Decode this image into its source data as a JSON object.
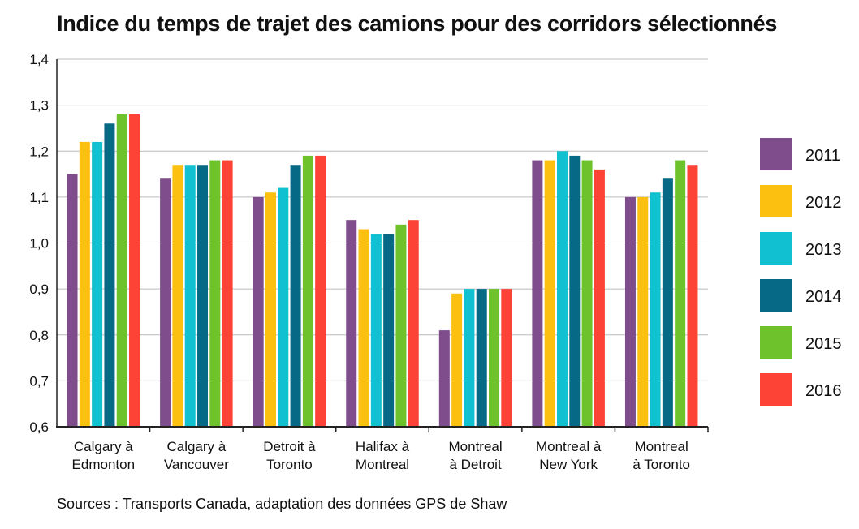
{
  "chart_data": {
    "type": "bar",
    "title": "Indice du temps de trajet des camions pour des corridors sélectionnés",
    "source": "Sources : Transports Canada, adaptation des données GPS de Shaw",
    "categories": [
      [
        "Calgary à",
        "Edmonton"
      ],
      [
        "Calgary à",
        "Vancouver"
      ],
      [
        "Detroit à",
        "Toronto"
      ],
      [
        "Halifax à",
        "Montreal"
      ],
      [
        "Montreal",
        "à Detroit"
      ],
      [
        "Montreal à",
        "New York"
      ],
      [
        "Montreal",
        "à Toronto"
      ]
    ],
    "ylim": [
      0.6,
      1.4
    ],
    "yticks": [
      "0,6",
      "0,7",
      "0,8",
      "0,9",
      "1,0",
      "1,1",
      "1,2",
      "1,3",
      "1,4"
    ],
    "grid": true,
    "legend_position": "right",
    "series": [
      {
        "name": "2011",
        "color": "#7f4c8c",
        "values": [
          1.15,
          1.14,
          1.1,
          1.05,
          0.81,
          1.18,
          1.1
        ]
      },
      {
        "name": "2012",
        "color": "#fbc010",
        "values": [
          1.22,
          1.17,
          1.11,
          1.03,
          0.89,
          1.18,
          1.1
        ]
      },
      {
        "name": "2013",
        "color": "#12c1d1",
        "values": [
          1.22,
          1.17,
          1.12,
          1.02,
          0.9,
          1.2,
          1.11
        ]
      },
      {
        "name": "2014",
        "color": "#066985",
        "values": [
          1.26,
          1.17,
          1.17,
          1.02,
          0.9,
          1.19,
          1.14
        ]
      },
      {
        "name": "2015",
        "color": "#6ec22c",
        "values": [
          1.28,
          1.18,
          1.19,
          1.04,
          0.9,
          1.18,
          1.18
        ]
      },
      {
        "name": "2016",
        "color": "#fd4236",
        "values": [
          1.28,
          1.18,
          1.19,
          1.05,
          0.9,
          1.16,
          1.17
        ]
      }
    ]
  }
}
